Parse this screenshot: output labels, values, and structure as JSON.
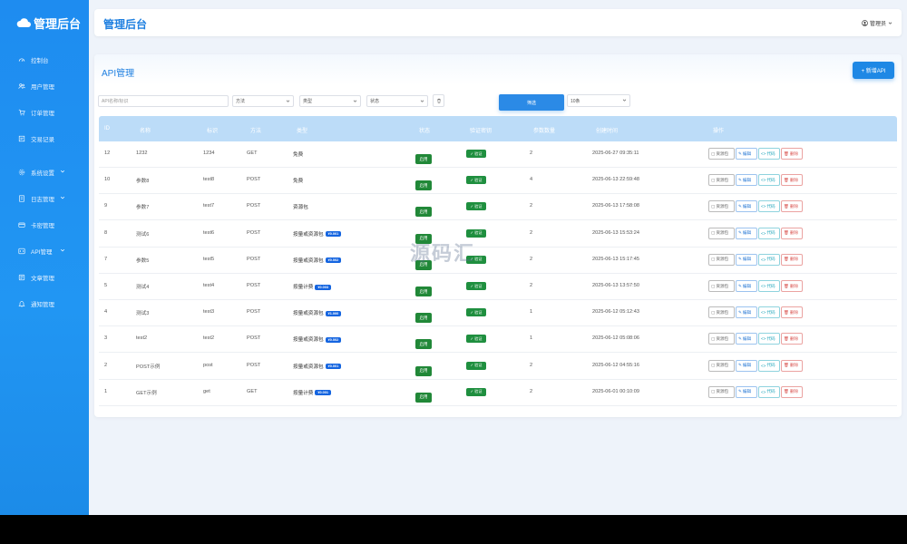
{
  "sidebar": {
    "brand": "管理后台",
    "items": [
      {
        "label": "控制台",
        "icon": "dashboard-icon"
      },
      {
        "label": "用户管理",
        "icon": "users-icon"
      },
      {
        "label": "订单管理",
        "icon": "cart-icon"
      },
      {
        "label": "交易记录",
        "icon": "record-icon"
      },
      {
        "label": "系统设置",
        "icon": "gear-icon"
      },
      {
        "label": "日志管理",
        "icon": "log-icon"
      },
      {
        "label": "卡密管理",
        "icon": "card-icon"
      },
      {
        "label": "API管理",
        "icon": "api-icon"
      },
      {
        "label": "文章管理",
        "icon": "article-icon"
      },
      {
        "label": "通知管理",
        "icon": "bell-icon"
      }
    ]
  },
  "header": {
    "title": "管理后台",
    "user": "管理员"
  },
  "main": {
    "title": "API管理",
    "add_button": "+ 新增API",
    "filters": {
      "search_placeholder": "API名称/标识",
      "method": "方法",
      "type": "类型",
      "status": "状态",
      "search_button": "筛选",
      "page_size": "10条"
    },
    "columns": [
      "ID",
      "名称",
      "标识",
      "方法",
      "类型",
      "状态",
      "验证密钥",
      "参数数量",
      "创建时间",
      "操作"
    ],
    "rows": [
      {
        "id": "12",
        "name": "1232",
        "key": "1234",
        "method": "GET",
        "type": "免费",
        "price": "",
        "status": "启用",
        "verify": "✓ 验证",
        "params": "2",
        "created": "2025-06-27 09:35:11"
      },
      {
        "id": "10",
        "name": "参数8",
        "key": "test8",
        "method": "POST",
        "type": "免费",
        "price": "",
        "status": "启用",
        "verify": "✓ 验证",
        "params": "4",
        "created": "2025-06-13 22:59:48"
      },
      {
        "id": "9",
        "name": "参数7",
        "key": "test7",
        "method": "POST",
        "type": "资源包",
        "price": "",
        "status": "启用",
        "verify": "✓ 验证",
        "params": "2",
        "created": "2025-06-13 17:58:08"
      },
      {
        "id": "8",
        "name": "测试6",
        "key": "test6",
        "method": "POST",
        "type": "按量或资源包",
        "price": "¥0.001",
        "status": "启用",
        "verify": "✓ 验证",
        "params": "2",
        "created": "2025-06-13 15:53:24"
      },
      {
        "id": "7",
        "name": "参数5",
        "key": "test5",
        "method": "POST",
        "type": "按量或资源包",
        "price": "¥0.002",
        "status": "启用",
        "verify": "✓ 验证",
        "params": "2",
        "created": "2025-06-13 15:17:45"
      },
      {
        "id": "5",
        "name": "测试4",
        "key": "test4",
        "method": "POST",
        "type": "按量计费",
        "price": "¥0.003",
        "status": "启用",
        "verify": "✓ 验证",
        "params": "2",
        "created": "2025-06-13 13:57:50"
      },
      {
        "id": "4",
        "name": "测试3",
        "key": "test3",
        "method": "POST",
        "type": "按量或资源包",
        "price": "¥1.000",
        "status": "启用",
        "verify": "✓ 验证",
        "params": "1",
        "created": "2025-06-12 05:12:43"
      },
      {
        "id": "3",
        "name": "test2",
        "key": "test2",
        "method": "POST",
        "type": "按量或资源包",
        "price": "¥0.002",
        "status": "启用",
        "verify": "✓ 验证",
        "params": "1",
        "created": "2025-06-12 05:08:06"
      },
      {
        "id": "2",
        "name": "POST示例",
        "key": "post",
        "method": "POST",
        "type": "按量或资源包",
        "price": "¥0.001",
        "status": "启用",
        "verify": "✓ 验证",
        "params": "2",
        "created": "2025-06-12 04:55:16"
      },
      {
        "id": "1",
        "name": "GET示例",
        "key": "get",
        "method": "GET",
        "type": "按量计费",
        "price": "¥0.001",
        "status": "启用",
        "verify": "✓ 验证",
        "params": "2",
        "created": "2025-06-01 00:10:09"
      }
    ],
    "row_actions": {
      "resource": "资源包",
      "edit": "编辑",
      "code": "代码",
      "delete": "删除"
    }
  },
  "watermark": "源码汇",
  "colors": {
    "accent": "#1e88e5",
    "sidebar": "#2196f3",
    "enabled": "#218838",
    "danger": "#d9534f",
    "info": "#17a2b8"
  }
}
